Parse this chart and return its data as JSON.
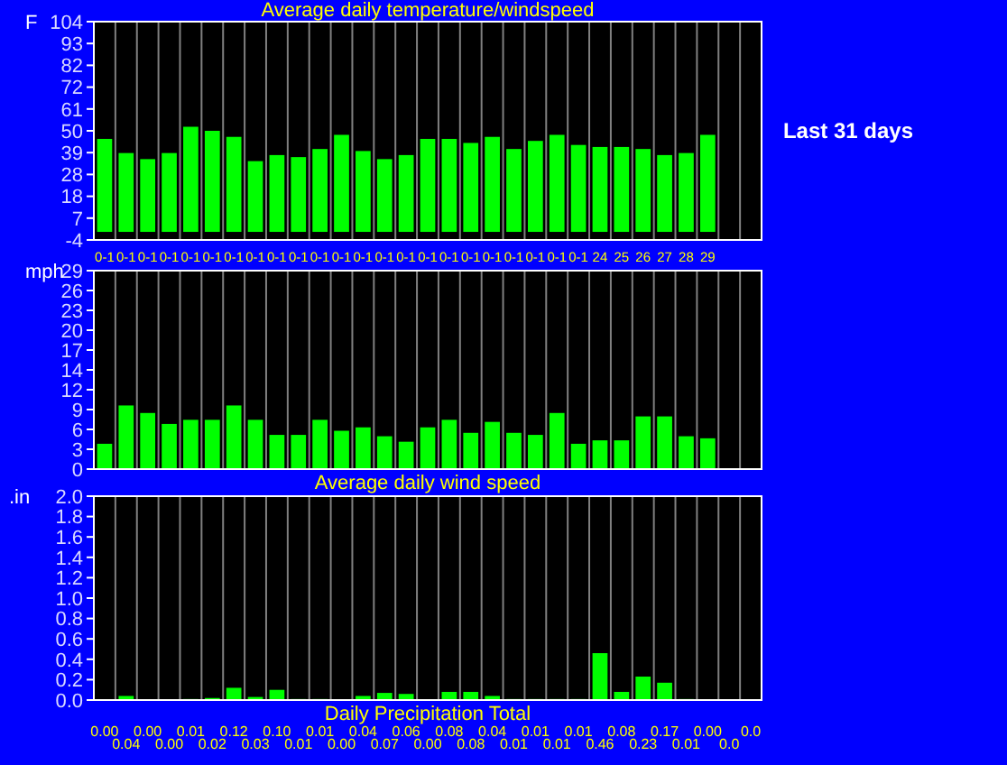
{
  "chart_data": [
    {
      "type": "bar",
      "title": "Average daily temperature/windspeed",
      "ylabel": "F",
      "annotations": [
        "Last 31 days"
      ],
      "grid": "x",
      "color": "#00ff00",
      "categories": [
        "0-1",
        "0-1",
        "0-1",
        "0-1",
        "0-1",
        "0-1",
        "0-1",
        "0-1",
        "0-1",
        "0-1",
        "0-1",
        "0-1",
        "0-1",
        "0-1",
        "0-1",
        "0-1",
        "0-1",
        "0-1",
        "0-1",
        "0-1",
        "0-1",
        "0-1",
        "0-1",
        "24",
        "25",
        "26",
        "27",
        "28",
        "29",
        null,
        null
      ],
      "values": [
        46,
        39,
        36,
        39,
        52,
        50,
        47,
        35,
        38,
        37,
        41,
        48,
        40,
        36,
        38,
        46,
        46,
        44,
        47,
        41,
        45,
        48,
        43,
        42,
        42,
        41,
        38,
        39,
        48,
        null,
        null
      ],
      "ylim": [
        -4,
        104
      ],
      "yticks": [
        -4,
        {
          "value": 6.8,
          "label": "7"
        },
        {
          "value": 17.6,
          "label": "18"
        },
        {
          "value": 28.4,
          "label": "28"
        },
        {
          "value": 39.2,
          "label": "39"
        },
        50,
        {
          "value": 60.8,
          "label": "61"
        },
        {
          "value": 71.6,
          "label": "72"
        },
        {
          "value": 82.4,
          "label": "82"
        },
        {
          "value": 93.2,
          "label": "93"
        },
        104
      ]
    },
    {
      "type": "bar",
      "xlabel": "Average daily wind speed",
      "ylabel": "mph",
      "grid": "x",
      "tick_labels": "y",
      "color": "#00ff00",
      "categories": [
        null,
        null,
        null,
        null,
        null,
        null,
        null,
        null,
        null,
        null,
        null,
        null,
        null,
        null,
        null,
        null,
        null,
        null,
        null,
        null,
        null,
        null,
        null,
        null,
        null,
        null,
        null,
        null,
        null,
        null,
        null
      ],
      "values": [
        3.7,
        9.3,
        8.2,
        6.6,
        7.2,
        7.2,
        9.3,
        7.2,
        5.0,
        5.0,
        7.2,
        5.6,
        6.1,
        4.8,
        4.0,
        6.1,
        7.2,
        5.3,
        6.9,
        5.3,
        5.0,
        8.2,
        3.7,
        4.2,
        4.2,
        7.7,
        7.7,
        4.8,
        4.5,
        null,
        null
      ],
      "ylim": [
        0,
        29
      ],
      "yticks": [
        0,
        {
          "value": 2.9,
          "label": "3"
        },
        {
          "value": 5.8,
          "label": "6"
        },
        {
          "value": 8.7,
          "label": "9"
        },
        {
          "value": 11.6,
          "label": "12"
        },
        {
          "value": 14.5,
          "label": "14"
        },
        {
          "value": 17.4,
          "label": "17"
        },
        {
          "value": 20.3,
          "label": "20"
        },
        {
          "value": 23.2,
          "label": "23"
        },
        {
          "value": 26.1,
          "label": "26"
        },
        29
      ]
    },
    {
      "type": "bar",
      "xlabel": "Daily Precipitation Total",
      "ylabel": ".in",
      "grid": "x",
      "tick_labels": "y",
      "color": "#00ff00",
      "categories": [
        null,
        null,
        null,
        null,
        null,
        null,
        null,
        null,
        null,
        null,
        null,
        null,
        null,
        null,
        null,
        null,
        null,
        null,
        null,
        null,
        null,
        null,
        null,
        null,
        null,
        null,
        null,
        null,
        null,
        null,
        null
      ],
      "values": [
        0.0,
        0.04,
        0.0,
        0.0,
        0.01,
        0.02,
        0.12,
        0.03,
        0.1,
        0.01,
        0.01,
        0.0,
        0.04,
        0.07,
        0.06,
        0.0,
        0.08,
        0.08,
        0.04,
        0.01,
        0.01,
        0.01,
        0.01,
        0.46,
        0.08,
        0.23,
        0.17,
        0.01,
        0.0,
        0.0,
        0.0
      ],
      "value_labels": [
        "0.00",
        "0.04",
        "0.00",
        "0.00",
        "0.01",
        "0.02",
        "0.12",
        "0.03",
        "0.10",
        "0.01",
        "0.01",
        "0.00",
        "0.04",
        "0.07",
        "0.06",
        "0.00",
        "0.08",
        "0.08",
        "0.04",
        "0.01",
        "0.01",
        "0.01",
        "0.01",
        "0.46",
        "0.08",
        "0.23",
        "0.17",
        "0.01",
        "0.00",
        "0.0",
        "0.0"
      ],
      "ylim": [
        0,
        2.0
      ],
      "yticks": [
        {
          "value": 0,
          "label": "0.0"
        },
        {
          "value": 0.2,
          "label": "0.2"
        },
        {
          "value": 0.4,
          "label": "0.4"
        },
        {
          "value": 0.6,
          "label": "0.6"
        },
        {
          "value": 0.8,
          "label": "0.8"
        },
        {
          "value": 1.0,
          "label": "1.0"
        },
        {
          "value": 1.2,
          "label": "1.2"
        },
        {
          "value": 1.4,
          "label": "1.4"
        },
        {
          "value": 1.6,
          "label": "1.6"
        },
        {
          "value": 1.8,
          "label": "1.8"
        },
        {
          "value": 2.0,
          "label": "2.0"
        }
      ]
    }
  ]
}
